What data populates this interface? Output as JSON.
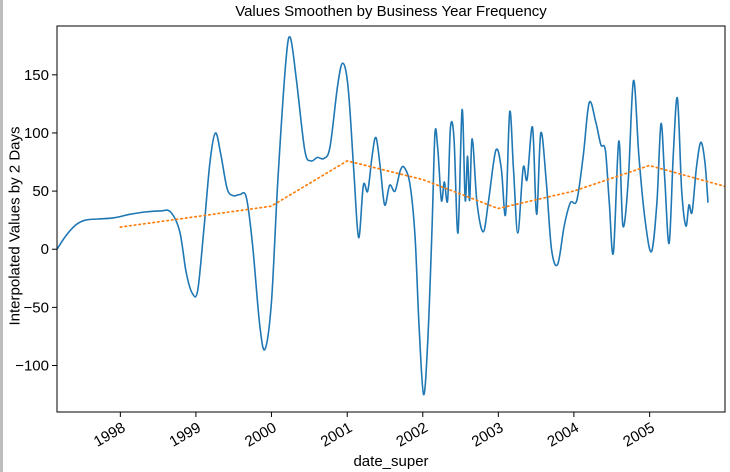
{
  "chart_data": {
    "type": "line",
    "title": "Values Smoothen by Business Year Frequency",
    "xlabel": "date_super",
    "ylabel": "Interpolated Values by 2 Days",
    "xlim": [
      "1997-03-01",
      "2005-12-31"
    ],
    "ylim": [
      -140,
      192
    ],
    "yticks": [
      -100,
      -50,
      0,
      50,
      100,
      150
    ],
    "xticks": [
      "1998",
      "1999",
      "2000",
      "2001",
      "2002",
      "2003",
      "2004",
      "2005"
    ],
    "grid": false,
    "series": [
      {
        "color": "#1f77b4",
        "style": "solid",
        "points": [
          [
            "1997-03-01",
            0
          ],
          [
            "1997-04-15",
            12
          ],
          [
            "1997-06-01",
            21
          ],
          [
            "1997-07-15",
            25
          ],
          [
            "1997-09-15",
            26
          ],
          [
            "1997-12-01",
            27
          ],
          [
            "1998-02-15",
            30
          ],
          [
            "1998-05-01",
            32
          ],
          [
            "1998-07-15",
            33
          ],
          [
            "1998-09-01",
            32
          ],
          [
            "1998-10-15",
            15
          ],
          [
            "1998-11-15",
            -20
          ],
          [
            "1998-12-15",
            -38
          ],
          [
            "1999-01-10",
            -35
          ],
          [
            "1999-02-10",
            20
          ],
          [
            "1999-03-10",
            75
          ],
          [
            "1999-04-05",
            100
          ],
          [
            "1999-05-01",
            82
          ],
          [
            "1999-06-01",
            52
          ],
          [
            "1999-07-01",
            46
          ],
          [
            "1999-08-01",
            47
          ],
          [
            "1999-09-01",
            45
          ],
          [
            "1999-10-01",
            5
          ],
          [
            "1999-11-05",
            -65
          ],
          [
            "1999-12-01",
            -86
          ],
          [
            "2000-01-01",
            -45
          ],
          [
            "2000-02-01",
            60
          ],
          [
            "2000-03-10",
            160
          ],
          [
            "2000-04-01",
            182
          ],
          [
            "2000-05-01",
            145
          ],
          [
            "2000-06-10",
            85
          ],
          [
            "2000-07-10",
            76
          ],
          [
            "2000-08-10",
            79
          ],
          [
            "2000-09-10",
            78
          ],
          [
            "2000-10-10",
            88
          ],
          [
            "2000-11-15",
            140
          ],
          [
            "2000-12-10",
            160
          ],
          [
            "2001-01-05",
            140
          ],
          [
            "2001-02-01",
            70
          ],
          [
            "2001-02-25",
            10
          ],
          [
            "2001-03-20",
            55
          ],
          [
            "2001-04-10",
            50
          ],
          [
            "2001-05-01",
            80
          ],
          [
            "2001-05-20",
            96
          ],
          [
            "2001-06-10",
            70
          ],
          [
            "2001-07-01",
            38
          ],
          [
            "2001-07-25",
            55
          ],
          [
            "2001-08-20",
            50
          ],
          [
            "2001-09-15",
            68
          ],
          [
            "2001-10-05",
            70
          ],
          [
            "2001-11-01",
            55
          ],
          [
            "2001-11-25",
            10
          ],
          [
            "2001-12-15",
            -70
          ],
          [
            "2002-01-05",
            -125
          ],
          [
            "2002-01-25",
            -80
          ],
          [
            "2002-02-15",
            20
          ],
          [
            "2002-03-01",
            100
          ],
          [
            "2002-03-15",
            85
          ],
          [
            "2002-04-01",
            42
          ],
          [
            "2002-04-15",
            58
          ],
          [
            "2002-05-01",
            42
          ],
          [
            "2002-05-15",
            105
          ],
          [
            "2002-06-01",
            95
          ],
          [
            "2002-06-20",
            14
          ],
          [
            "2002-07-10",
            120
          ],
          [
            "2002-07-25",
            42
          ],
          [
            "2002-08-05",
            80
          ],
          [
            "2002-08-15",
            42
          ],
          [
            "2002-08-28",
            95
          ],
          [
            "2002-09-20",
            40
          ],
          [
            "2002-10-20",
            15
          ],
          [
            "2002-11-15",
            42
          ],
          [
            "2002-12-20",
            85
          ],
          [
            "2003-01-15",
            70
          ],
          [
            "2003-02-05",
            30
          ],
          [
            "2003-02-25",
            118
          ],
          [
            "2003-03-15",
            70
          ],
          [
            "2003-04-05",
            14
          ],
          [
            "2003-05-01",
            70
          ],
          [
            "2003-05-20",
            60
          ],
          [
            "2003-06-15",
            105
          ],
          [
            "2003-07-05",
            30
          ],
          [
            "2003-07-25",
            100
          ],
          [
            "2003-08-20",
            60
          ],
          [
            "2003-09-15",
            0
          ],
          [
            "2003-10-15",
            -13
          ],
          [
            "2003-11-15",
            20
          ],
          [
            "2003-12-15",
            40
          ],
          [
            "2004-01-15",
            42
          ],
          [
            "2004-02-15",
            80
          ],
          [
            "2004-03-15",
            126
          ],
          [
            "2004-04-15",
            110
          ],
          [
            "2004-05-10",
            90
          ],
          [
            "2004-06-01",
            85
          ],
          [
            "2004-06-20",
            40
          ],
          [
            "2004-07-10",
            -3
          ],
          [
            "2004-08-05",
            93
          ],
          [
            "2004-08-25",
            20
          ],
          [
            "2004-09-20",
            60
          ],
          [
            "2004-10-15",
            145
          ],
          [
            "2004-11-10",
            80
          ],
          [
            "2004-12-10",
            25
          ],
          [
            "2005-01-10",
            -2
          ],
          [
            "2005-02-05",
            40
          ],
          [
            "2005-02-25",
            108
          ],
          [
            "2005-03-15",
            60
          ],
          [
            "2005-04-05",
            5
          ],
          [
            "2005-04-25",
            80
          ],
          [
            "2005-05-15",
            130
          ],
          [
            "2005-06-05",
            50
          ],
          [
            "2005-06-25",
            20
          ],
          [
            "2005-07-10",
            38
          ],
          [
            "2005-07-25",
            32
          ],
          [
            "2005-08-15",
            70
          ],
          [
            "2005-09-05",
            92
          ],
          [
            "2005-09-25",
            75
          ],
          [
            "2005-10-10",
            40
          ]
        ]
      },
      {
        "color": "#ff7f0e",
        "style": "dotted",
        "points": [
          [
            "1998-01-01",
            19
          ],
          [
            "1998-12-31",
            28
          ],
          [
            "1999-12-31",
            37
          ],
          [
            "2001-01-01",
            76
          ],
          [
            "2001-12-31",
            60
          ],
          [
            "2002-12-31",
            35
          ],
          [
            "2003-12-31",
            50
          ],
          [
            "2004-12-31",
            72
          ],
          [
            "2005-12-31",
            54
          ]
        ]
      }
    ]
  }
}
